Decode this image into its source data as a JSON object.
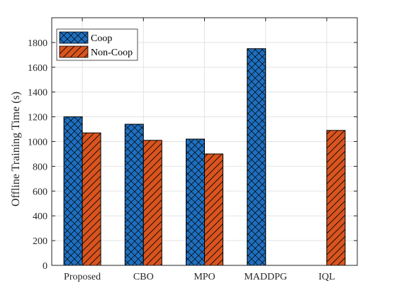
{
  "chart_data": {
    "type": "bar",
    "categories": [
      "Proposed",
      "CBO",
      "MPO",
      "MADDPG",
      "IQL"
    ],
    "series": [
      {
        "name": "Coop",
        "values": [
          1200,
          1140,
          1020,
          1750,
          0
        ],
        "color": "#1f6fbf",
        "hatch": "crosshatch"
      },
      {
        "name": "Non-Coop",
        "values": [
          1070,
          1010,
          900,
          0,
          1090
        ],
        "color": "#d9541e",
        "hatch": "diagonal"
      }
    ],
    "title": "",
    "xlabel": "",
    "ylabel": "Offline Training Time (s)",
    "ylim": [
      0,
      2000
    ],
    "yticks": [
      0,
      200,
      400,
      600,
      800,
      1000,
      1200,
      1400,
      1600,
      1800
    ],
    "grid": true,
    "legend_position": "top-left"
  }
}
